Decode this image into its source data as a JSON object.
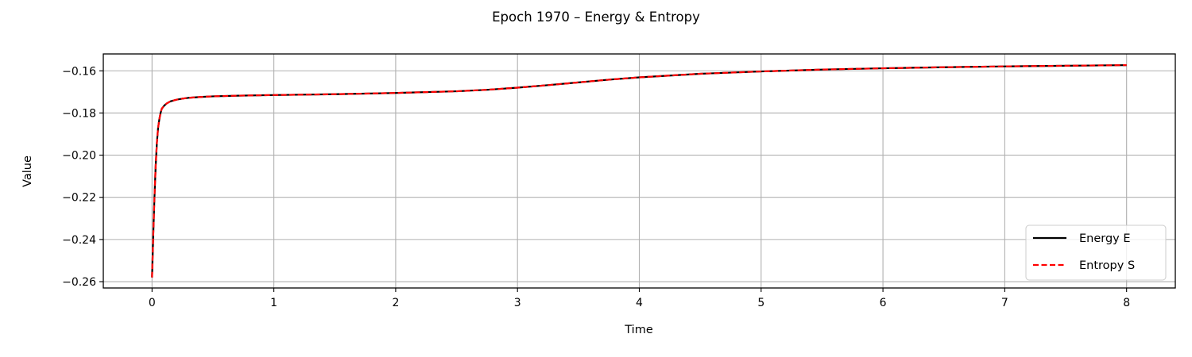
{
  "chart_data": {
    "type": "line",
    "title": "Epoch 1970 – Energy & Entropy",
    "xlabel": "Time",
    "ylabel": "Value",
    "xlim": [
      -0.4,
      8.4
    ],
    "ylim": [
      -0.263,
      -0.152
    ],
    "xticks": [
      0,
      1,
      2,
      3,
      4,
      5,
      6,
      7,
      8
    ],
    "xtick_labels": [
      "0",
      "1",
      "2",
      "3",
      "4",
      "5",
      "6",
      "7",
      "8"
    ],
    "yticks": [
      -0.26,
      -0.24,
      -0.22,
      -0.2,
      -0.18,
      -0.16
    ],
    "ytick_labels": [
      "−0.26",
      "−0.24",
      "−0.22",
      "−0.20",
      "−0.18",
      "−0.16"
    ],
    "grid": true,
    "legend_position": "lower-right",
    "x": [
      0.0,
      0.01,
      0.02,
      0.03,
      0.04,
      0.05,
      0.06,
      0.07,
      0.08,
      0.1,
      0.12,
      0.15,
      0.2,
      0.25,
      0.3,
      0.4,
      0.5,
      0.7,
      1.0,
      1.5,
      2.0,
      2.5,
      2.75,
      3.0,
      3.25,
      3.5,
      3.75,
      4.0,
      4.5,
      5.0,
      5.5,
      6.0,
      6.5,
      7.0,
      7.5,
      8.0
    ],
    "series": [
      {
        "name": "Energy E",
        "color": "#000000",
        "style": "solid",
        "values": [
          -0.258,
          -0.238,
          -0.22,
          -0.205,
          -0.194,
          -0.187,
          -0.183,
          -0.18,
          -0.178,
          -0.1765,
          -0.1755,
          -0.1745,
          -0.1737,
          -0.1732,
          -0.1728,
          -0.1724,
          -0.1721,
          -0.1718,
          -0.1715,
          -0.1711,
          -0.1705,
          -0.1697,
          -0.169,
          -0.168,
          -0.1668,
          -0.1655,
          -0.1642,
          -0.1631,
          -0.1614,
          -0.1603,
          -0.1594,
          -0.1588,
          -0.1583,
          -0.1579,
          -0.1576,
          -0.1573
        ]
      },
      {
        "name": "Entropy S",
        "color": "#ff0000",
        "style": "dashed",
        "values": [
          -0.258,
          -0.238,
          -0.22,
          -0.205,
          -0.194,
          -0.187,
          -0.183,
          -0.18,
          -0.178,
          -0.1765,
          -0.1755,
          -0.1745,
          -0.1737,
          -0.1732,
          -0.1728,
          -0.1724,
          -0.1721,
          -0.1718,
          -0.1715,
          -0.1711,
          -0.1705,
          -0.1697,
          -0.169,
          -0.168,
          -0.1668,
          -0.1655,
          -0.1642,
          -0.1631,
          -0.1614,
          -0.1603,
          -0.1594,
          -0.1588,
          -0.1583,
          -0.1579,
          -0.1576,
          -0.1573
        ]
      }
    ]
  }
}
